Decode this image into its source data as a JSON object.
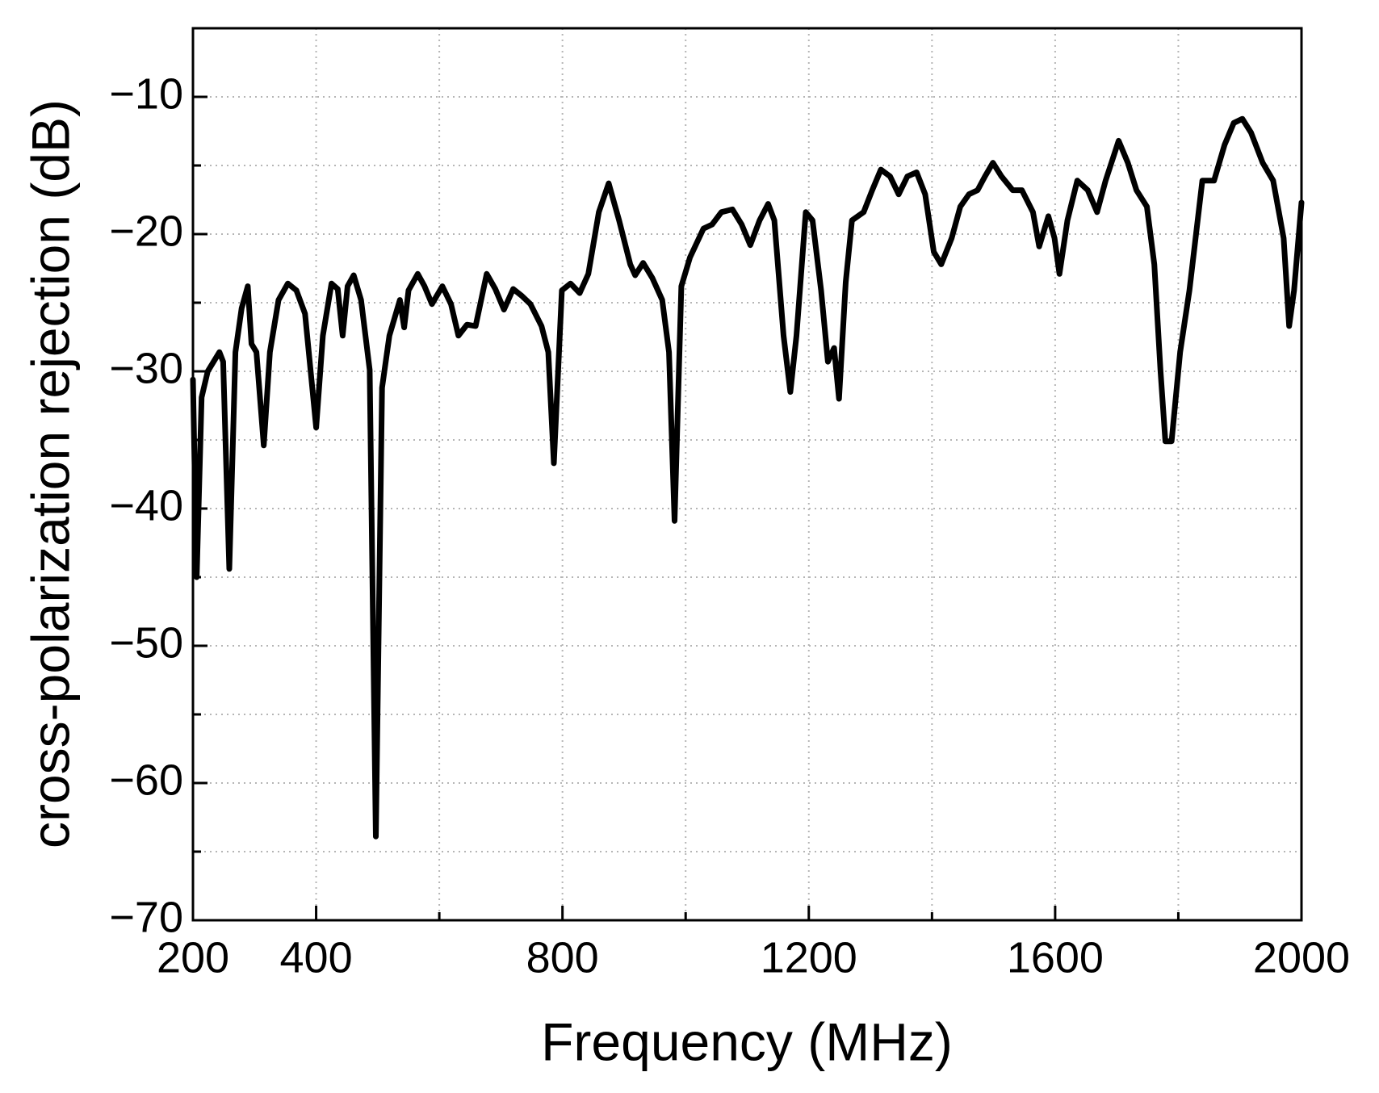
{
  "chart_data": {
    "type": "line",
    "xlabel": "Frequency (MHz)",
    "ylabel": "cross-polarization rejection (dB)",
    "xlim": [
      200,
      2000
    ],
    "xticks": [
      200,
      400,
      800,
      1200,
      1600,
      2000
    ],
    "x_minor_ticks": [
      600,
      1000,
      1400,
      1800
    ],
    "ylim": [
      -70,
      -5
    ],
    "yticks": [
      {
        "value": -10,
        "label": "−10"
      },
      {
        "value": -20,
        "label": "−20"
      },
      {
        "value": -30,
        "label": "−30"
      },
      {
        "value": -40,
        "label": "−40"
      },
      {
        "value": -50,
        "label": "−50"
      },
      {
        "value": -60,
        "label": "−60"
      },
      {
        "value": -70,
        "label": "−70"
      }
    ],
    "y_minor_ticks": [
      -15,
      -25,
      -35,
      -45,
      -55,
      -65
    ],
    "grid": true,
    "series": [
      {
        "color": "#000000",
        "x": [
          200,
          206,
          214,
          224,
          243,
          249,
          259,
          269,
          279,
          289,
          295,
          303,
          315,
          325,
          339,
          354,
          368,
          382,
          400,
          411,
          425,
          435,
          443,
          451,
          461,
          473,
          487,
          497,
          507,
          519,
          536,
          543,
          550,
          565,
          576,
          588,
          605,
          619,
          631,
          645,
          659,
          677,
          691,
          705,
          720,
          734,
          748,
          766,
          777,
          786,
          799,
          813,
          828,
          842,
          859,
          875,
          892,
          910,
          918,
          931,
          946,
          962,
          973,
          982,
          993,
          1007,
          1029,
          1043,
          1058,
          1076,
          1091,
          1105,
          1120,
          1134,
          1144,
          1159,
          1170,
          1180,
          1195,
          1206,
          1220,
          1231,
          1241,
          1249,
          1260,
          1270,
          1289,
          1303,
          1317,
          1332,
          1346,
          1360,
          1375,
          1389,
          1403,
          1415,
          1432,
          1446,
          1460,
          1474,
          1486,
          1499,
          1513,
          1531,
          1546,
          1564,
          1574,
          1589,
          1599,
          1607,
          1620,
          1636,
          1653,
          1668,
          1682,
          1703,
          1718,
          1732,
          1749,
          1761,
          1771,
          1779,
          1789,
          1803,
          1818,
          1839,
          1858,
          1875,
          1890,
          1904,
          1918,
          1937,
          1954,
          1971,
          1980,
          1988,
          2000
        ],
        "values": [
          -30.6,
          -45,
          -31.9,
          -30,
          -28.6,
          -29.3,
          -44.4,
          -28.6,
          -25.4,
          -23.8,
          -28,
          -28.6,
          -35.4,
          -28.6,
          -24.8,
          -23.6,
          -24.1,
          -25.8,
          -34.1,
          -27.4,
          -23.6,
          -24,
          -27.4,
          -23.8,
          -23,
          -24.8,
          -29.9,
          -63.9,
          -31.2,
          -27.4,
          -24.8,
          -26.8,
          -24.1,
          -22.9,
          -23.8,
          -25.1,
          -23.8,
          -25.1,
          -27.4,
          -26.6,
          -26.7,
          -22.9,
          -24,
          -25.5,
          -24,
          -24.5,
          -25.1,
          -26.7,
          -28.6,
          -36.7,
          -24.1,
          -23.6,
          -24.3,
          -22.9,
          -18.4,
          -16.3,
          -19,
          -22.2,
          -23,
          -22.1,
          -23.2,
          -24.8,
          -28.6,
          -40.9,
          -23.8,
          -21.7,
          -19.6,
          -19.3,
          -18.4,
          -18.2,
          -19.3,
          -20.8,
          -19,
          -17.8,
          -19,
          -27.4,
          -31.5,
          -27.4,
          -18.4,
          -19,
          -24.1,
          -29.3,
          -28.3,
          -32,
          -23.5,
          -19,
          -18.4,
          -16.8,
          -15.3,
          -15.8,
          -17.1,
          -15.8,
          -15.5,
          -17.1,
          -21.3,
          -22.2,
          -20.3,
          -18,
          -17.1,
          -16.8,
          -15.8,
          -14.8,
          -15.8,
          -16.8,
          -16.8,
          -18.4,
          -20.9,
          -18.7,
          -20.3,
          -22.9,
          -19,
          -16.1,
          -16.8,
          -18.4,
          -16.1,
          -13.2,
          -14.8,
          -16.8,
          -18,
          -22.2,
          -29.9,
          -35.1,
          -35.1,
          -28.6,
          -24.1,
          -16.1,
          -16.1,
          -13.5,
          -11.9,
          -11.6,
          -12.6,
          -14.8,
          -16.1,
          -20.3,
          -26.7,
          -24.1,
          -17.7
        ]
      }
    ]
  }
}
